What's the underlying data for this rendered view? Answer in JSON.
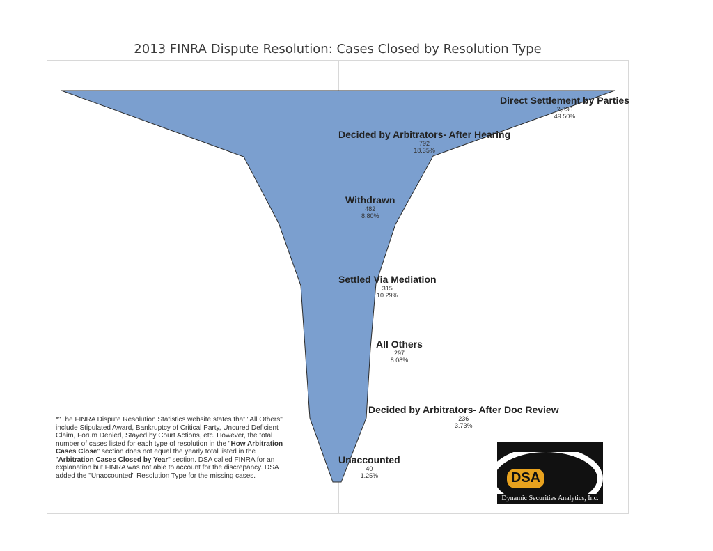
{
  "chart_data": {
    "type": "funnel",
    "title": "2013 FINRA Dispute Resolution: Cases Closed by Resolution Type",
    "stages": [
      {
        "name": "Direct Settlement by Parties",
        "value_text": "2,336",
        "pct_text": "49.50%"
      },
      {
        "name": "Decided by Arbitrators- After Hearing",
        "value_text": "792",
        "pct_text": "18.35%"
      },
      {
        "name": "Withdrawn",
        "value_text": "482",
        "pct_text": "8.80%"
      },
      {
        "name": "Settled Via Mediation",
        "value_text": "315",
        "pct_text": "10.29%"
      },
      {
        "name": "All Others",
        "value_text": "297",
        "pct_text": "8.08%"
      },
      {
        "name": "Decided by Arbitrators- After Doc Review",
        "value_text": "236",
        "pct_text": "3.73%"
      },
      {
        "name": "Unaccounted",
        "value_text": "40",
        "pct_text": "1.25%"
      }
    ],
    "fill_color": "#7b9fcf",
    "stroke_color": "#2b2b2b"
  },
  "note": {
    "p1": "*\"The FINRA Dispute Resolution Statistics website states that \"All Others\" include Stipulated Award, Bankruptcy of Critical Party, Uncured Deficient Claim, Forum Denied, Stayed by Court Actions, etc. However, the total number of cases listed for each type of resolution in the \"",
    "b1": "How Arbitration Cases Close",
    "p2": "\" section does not equal the yearly total listed in the \"",
    "b2": "Arbitration Cases Closed by Year",
    "p3": "\" section. DSA called FINRA for an explanation but FINRA was not able to account for the discrepancy. DSA added the \"Unaccounted\" Resolution Type for the missing cases."
  },
  "logo": {
    "text": "DSA",
    "caption": "Dynamic Securities Analytics, Inc."
  }
}
